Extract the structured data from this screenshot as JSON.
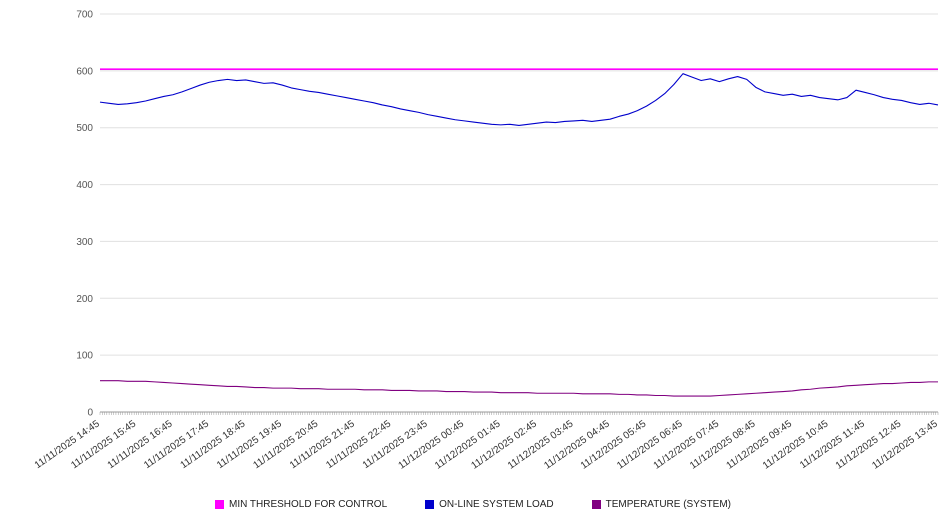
{
  "chart": {
    "background": "#ffffff",
    "grid_color": "#e0e0e0",
    "axis_color": "#999999"
  },
  "legend": {
    "items": [
      {
        "label": "MIN THRESHOLD FOR CONTROL",
        "color": "#ff00ff"
      },
      {
        "label": "ON-LINE SYSTEM LOAD",
        "color": "#0000cc"
      },
      {
        "label": "TEMPERATURE (SYSTEM)",
        "color": "#800080"
      }
    ]
  },
  "chart_data": {
    "type": "line",
    "title": "",
    "xlabel": "",
    "ylabel": "",
    "ylim": [
      0,
      700
    ],
    "yticks": [
      0,
      100,
      200,
      300,
      400,
      500,
      600,
      700
    ],
    "grid": true,
    "legend_position": "bottom",
    "points_per_label_interval": 4,
    "x_labels": [
      "11/11/2025 14:45",
      "11/11/2025 15:45",
      "11/11/2025 16:45",
      "11/11/2025 17:45",
      "11/11/2025 18:45",
      "11/11/2025 19:45",
      "11/11/2025 20:45",
      "11/11/2025 21:45",
      "11/11/2025 22:45",
      "11/11/2025 23:45",
      "11/12/2025 00:45",
      "11/12/2025 01:45",
      "11/12/2025 02:45",
      "11/12/2025 03:45",
      "11/12/2025 04:45",
      "11/12/2025 05:45",
      "11/12/2025 06:45",
      "11/12/2025 07:45",
      "11/12/2025 08:45",
      "11/12/2025 09:45",
      "11/12/2025 10:45",
      "11/12/2025 11:45",
      "11/12/2025 12:45",
      "11/12/2025 13:45"
    ],
    "series": [
      {
        "name": "MIN THRESHOLD FOR CONTROL",
        "color": "#ff00ff",
        "width": 1.6,
        "constant": 603
      },
      {
        "name": "ON-LINE SYSTEM LOAD",
        "color": "#0000cc",
        "width": 1.1,
        "values": [
          545,
          543,
          541,
          542,
          544,
          547,
          551,
          555,
          558,
          563,
          569,
          575,
          580,
          583,
          585,
          583,
          584,
          581,
          578,
          579,
          575,
          570,
          567,
          564,
          562,
          559,
          556,
          553,
          550,
          547,
          544,
          540,
          537,
          533,
          530,
          527,
          523,
          520,
          517,
          514,
          512,
          510,
          508,
          506,
          505,
          506,
          504,
          506,
          508,
          510,
          509,
          511,
          512,
          513,
          511,
          513,
          515,
          520,
          524,
          530,
          538,
          548,
          560,
          576,
          595,
          589,
          583,
          586,
          581,
          586,
          590,
          585,
          571,
          563,
          560,
          557,
          559,
          555,
          557,
          553,
          551,
          549,
          553,
          566,
          562,
          558,
          553,
          550,
          548,
          544,
          541,
          543,
          540
        ]
      },
      {
        "name": "TEMPERATURE (SYSTEM)",
        "color": "#800080",
        "width": 1.1,
        "values": [
          55,
          55,
          55,
          54,
          54,
          54,
          53,
          52,
          51,
          50,
          49,
          48,
          47,
          46,
          45,
          45,
          44,
          43,
          43,
          42,
          42,
          42,
          41,
          41,
          41,
          40,
          40,
          40,
          40,
          39,
          39,
          39,
          38,
          38,
          38,
          37,
          37,
          37,
          36,
          36,
          36,
          35,
          35,
          35,
          34,
          34,
          34,
          34,
          33,
          33,
          33,
          33,
          33,
          32,
          32,
          32,
          32,
          31,
          31,
          30,
          30,
          29,
          29,
          28,
          28,
          28,
          28,
          28,
          29,
          30,
          31,
          32,
          33,
          34,
          35,
          36,
          37,
          39,
          40,
          42,
          43,
          44,
          46,
          47,
          48,
          49,
          50,
          50,
          51,
          52,
          52,
          53,
          53
        ]
      }
    ]
  }
}
